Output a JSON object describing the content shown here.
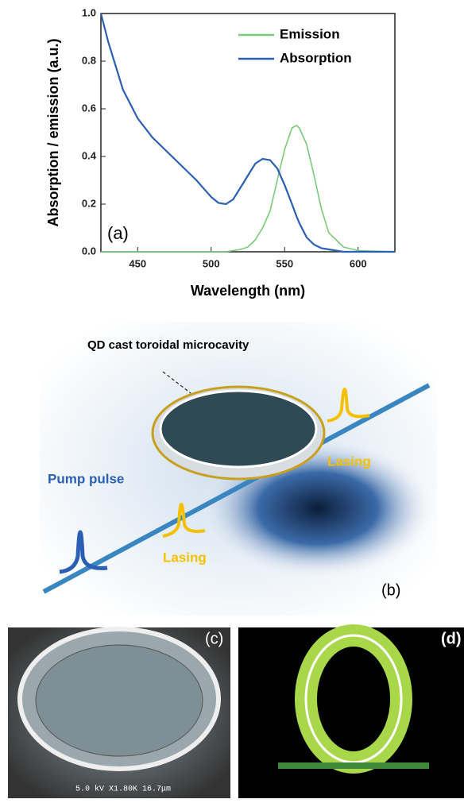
{
  "chart_data": {
    "type": "line",
    "xlabel": "Wavelength (nm)",
    "ylabel": "Absorption / emission (a.u.)",
    "annotation": "(a)",
    "x": [
      425,
      430,
      440,
      450,
      460,
      470,
      480,
      490,
      500,
      505,
      510,
      515,
      520,
      525,
      530,
      535,
      540,
      545,
      550,
      555,
      558,
      560,
      565,
      570,
      575,
      580,
      590,
      600,
      625
    ],
    "series": [
      {
        "name": "Emission",
        "color": "#78cc78",
        "values": [
          0,
          0,
          0,
          0,
          0,
          0,
          0,
          0,
          0,
          0,
          0,
          0.005,
          0.01,
          0.02,
          0.05,
          0.1,
          0.17,
          0.3,
          0.43,
          0.52,
          0.53,
          0.52,
          0.45,
          0.32,
          0.18,
          0.08,
          0.02,
          0.005,
          0
        ]
      },
      {
        "name": "Absorption",
        "color": "#2b5fb3",
        "values": [
          1.0,
          0.88,
          0.68,
          0.56,
          0.48,
          0.42,
          0.36,
          0.3,
          0.23,
          0.205,
          0.2,
          0.22,
          0.27,
          0.32,
          0.37,
          0.39,
          0.385,
          0.35,
          0.28,
          0.2,
          0.15,
          0.12,
          0.06,
          0.03,
          0.015,
          0.01,
          0,
          0,
          0
        ]
      }
    ],
    "xlim": [
      425,
      625
    ],
    "xticks": [
      450,
      500,
      550,
      600
    ],
    "ylim": [
      0,
      1
    ],
    "yticks": [
      {
        "value": 0,
        "label": "0.0"
      },
      0.2,
      0.4,
      0.6,
      0.8,
      {
        "value": 1,
        "label": "1.0"
      }
    ]
  },
  "panel_b": {
    "title": "QD cast toroidal microcavity",
    "pump": "Pump pulse",
    "lasing": [
      "Lasing",
      "Lasing"
    ],
    "label": "(b)"
  },
  "panel_c": {
    "label": "(c)",
    "scale": "5.0 kV X1.80K 16.7μm"
  },
  "panel_d": {
    "label": "(d)"
  }
}
